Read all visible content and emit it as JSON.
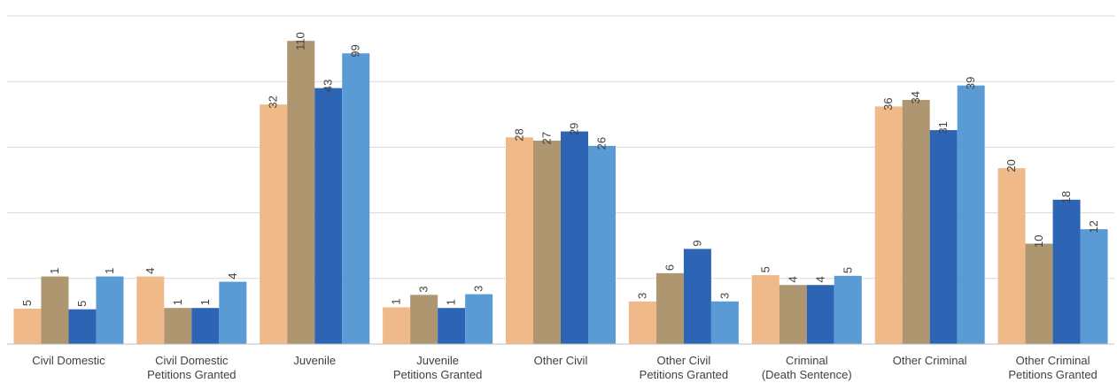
{
  "chart_data": {
    "type": "bar",
    "title": "",
    "xlabel": "",
    "ylabel": "",
    "categories": [
      "Civil Domestic",
      "Civil Domestic\nPetitions Granted",
      "Juvenile",
      "Juvenile\nPetitions Granted",
      "Other Civil",
      "Other Civil\nPetitions Granted",
      "Criminal\n(Death Sentence)",
      "Other Criminal",
      "Other Criminal\nPetitions Granted"
    ],
    "series": [
      {
        "color": "#f0b98a",
        "values": [
          5,
          4,
          32,
          1,
          28,
          3,
          5,
          36,
          20
        ]
      },
      {
        "color": "#ae9670",
        "values": [
          1,
          1,
          110,
          3,
          27,
          6,
          4,
          34,
          10
        ]
      },
      {
        "color": "#2e64b4",
        "values": [
          5,
          1,
          43,
          1,
          29,
          9,
          4,
          31,
          18
        ]
      },
      {
        "color": "#5b9bd5",
        "values": [
          1,
          4,
          99,
          3,
          26,
          3,
          5,
          39,
          12
        ]
      }
    ],
    "bar_heights_visual": [
      [
        0.54,
        1.03,
        3.65,
        0.56,
        3.15,
        0.65,
        1.05,
        3.62,
        2.68
      ],
      [
        1.03,
        0.55,
        4.62,
        0.75,
        3.1,
        1.08,
        0.9,
        3.72,
        1.53
      ],
      [
        0.53,
        0.55,
        3.9,
        0.55,
        3.24,
        1.45,
        0.9,
        3.26,
        2.2
      ],
      [
        1.03,
        0.95,
        4.43,
        0.76,
        3.02,
        0.65,
        1.04,
        3.94,
        1.75
      ]
    ],
    "grid": true,
    "legend": "none"
  }
}
